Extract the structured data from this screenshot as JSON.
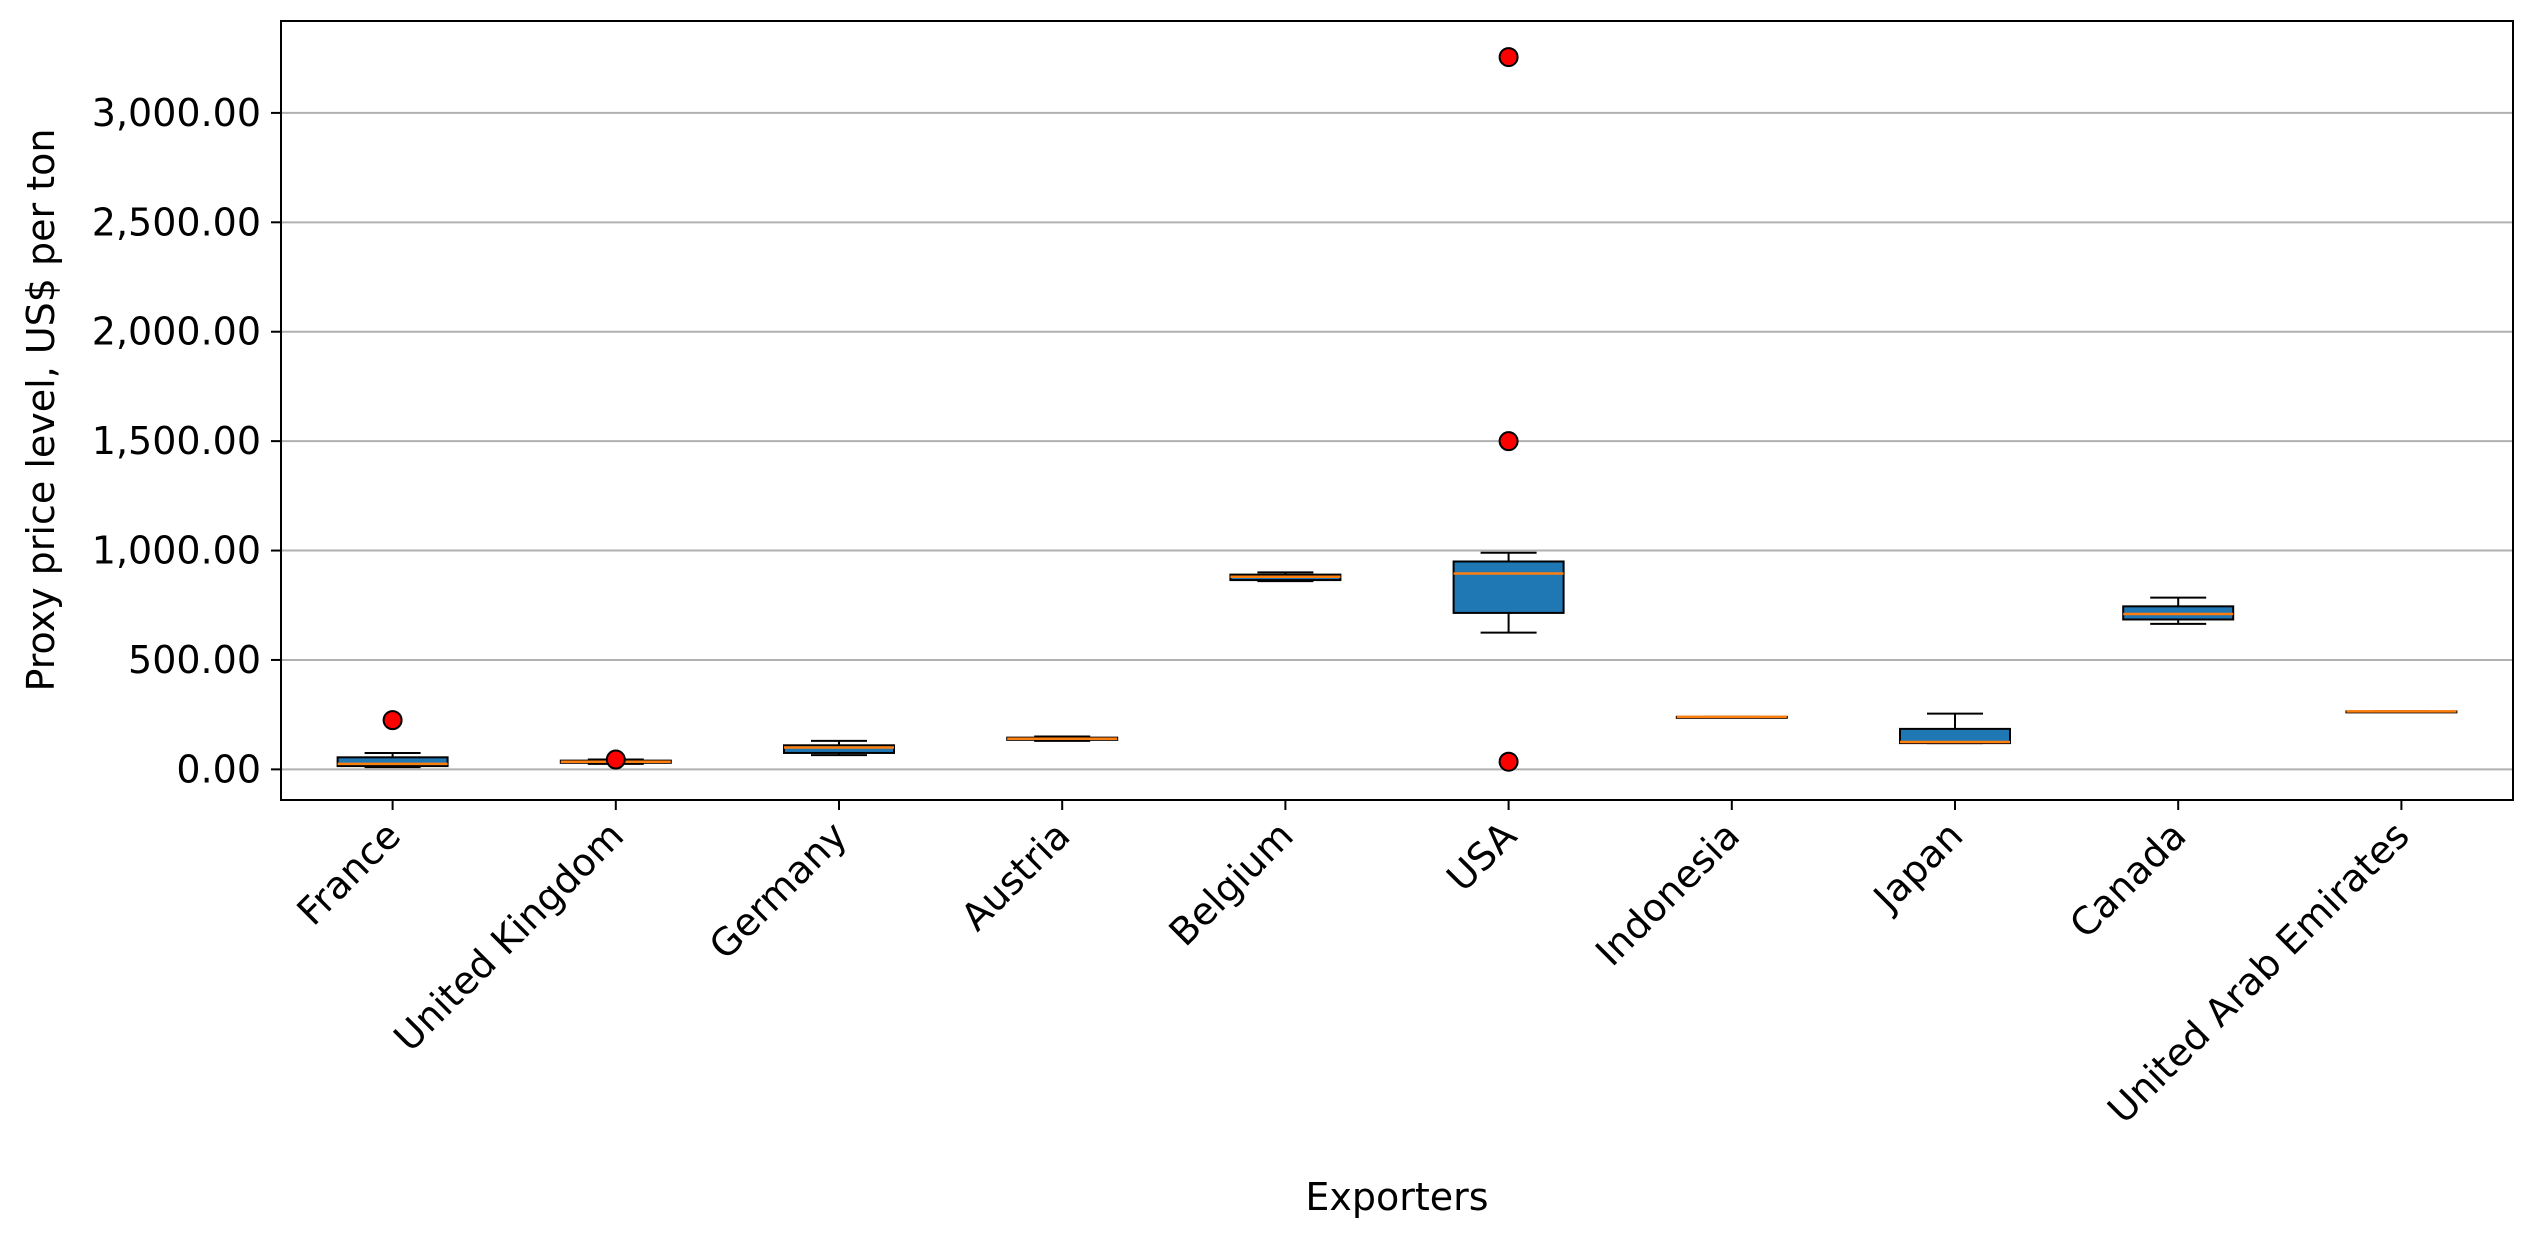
{
  "chart_data": {
    "type": "box",
    "title": "",
    "xlabel": "Exporters",
    "ylabel": "Proxy price level, US$ per ton",
    "ylim": [
      -140,
      3420
    ],
    "y_ticks": [
      0,
      500,
      1000,
      1500,
      2000,
      2500,
      3000
    ],
    "y_tick_labels": [
      "0.00",
      "500.00",
      "1,000.00",
      "1,500.00",
      "2,000.00",
      "2,500.00",
      "3,000.00"
    ],
    "grid": "horizontal",
    "categories": [
      "France",
      "United Kingdom",
      "Germany",
      "Austria",
      "Belgium",
      "USA",
      "Indonesia",
      "Japan",
      "Canada",
      "United Arab Emirates"
    ],
    "boxes": [
      {
        "whislo": 10,
        "q1": 15,
        "med": 25,
        "q3": 55,
        "whishi": 75,
        "fliers": [
          225
        ]
      },
      {
        "whislo": 25,
        "q1": 30,
        "med": 35,
        "q3": 40,
        "whishi": 45,
        "fliers": [
          45
        ]
      },
      {
        "whislo": 65,
        "q1": 75,
        "med": 100,
        "q3": 110,
        "whishi": 130,
        "fliers": []
      },
      {
        "whislo": 130,
        "q1": 135,
        "med": 140,
        "q3": 145,
        "whishi": 150,
        "fliers": []
      },
      {
        "whislo": 860,
        "q1": 865,
        "med": 880,
        "q3": 890,
        "whishi": 900,
        "fliers": []
      },
      {
        "whislo": 625,
        "q1": 715,
        "med": 895,
        "q3": 950,
        "whishi": 990,
        "fliers": [
          3255,
          1500,
          35
        ]
      },
      {
        "whislo": 240,
        "q1": 240,
        "med": 240,
        "q3": 240,
        "whishi": 240,
        "fliers": []
      },
      {
        "whislo": 120,
        "q1": 120,
        "med": 125,
        "q3": 185,
        "whishi": 255,
        "fliers": []
      },
      {
        "whislo": 665,
        "q1": 685,
        "med": 710,
        "q3": 745,
        "whishi": 785,
        "fliers": []
      },
      {
        "whislo": 265,
        "q1": 265,
        "med": 265,
        "q3": 265,
        "whishi": 265,
        "fliers": []
      }
    ],
    "colors": {
      "box": "#1f77b4",
      "median": "#ff7f0e",
      "flier": "#ff0000",
      "grid": "#b0b0b0"
    }
  }
}
